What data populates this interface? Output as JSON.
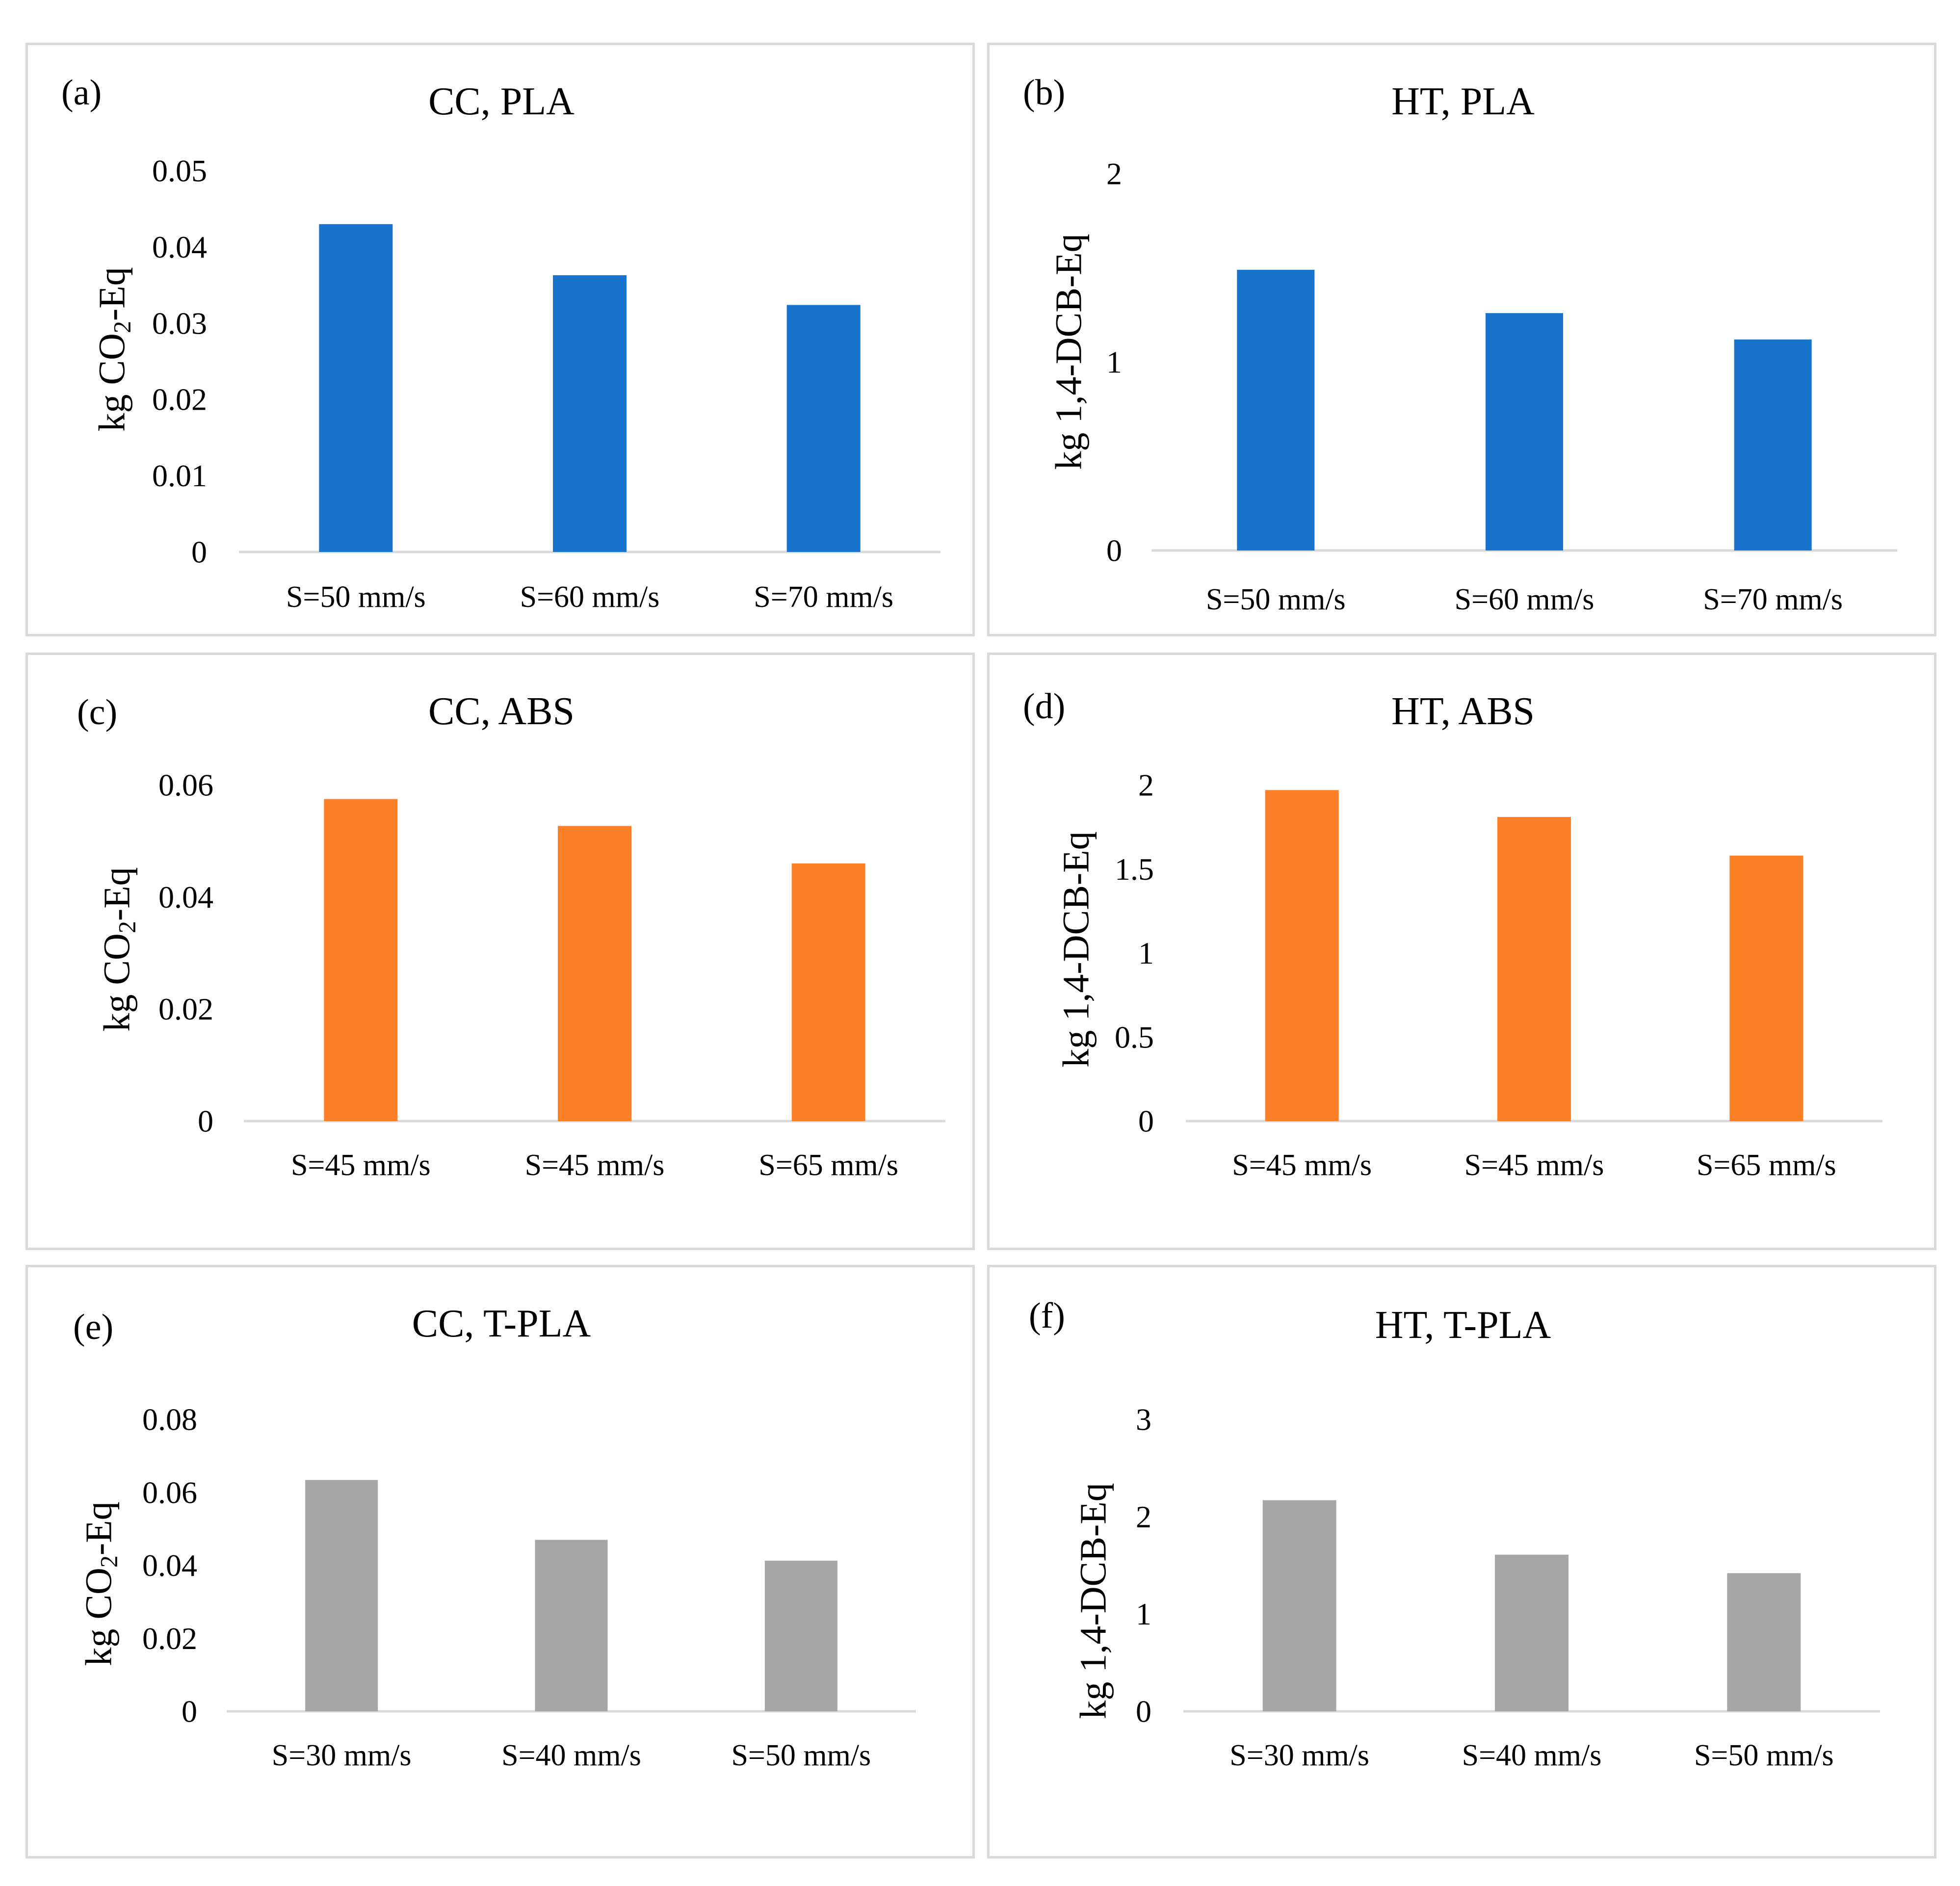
{
  "figure": {
    "background": "#ffffff",
    "border_color": "#d9d9d9",
    "axis_color": "#d9d9d9"
  },
  "panels": [
    {
      "letter": "(a)",
      "ylabel_main": "kg CO",
      "ylabel_sub": "2",
      "ylabel_tail": "-Eq"
    },
    {
      "letter": "(b)",
      "ylabel_main": "kg 1,4-DCB-Eq",
      "ylabel_sub": "",
      "ylabel_tail": ""
    },
    {
      "letter": "(c)",
      "ylabel_main": "kg CO",
      "ylabel_sub": "2",
      "ylabel_tail": "-Eq"
    },
    {
      "letter": "(d)",
      "ylabel_main": "kg 1,4-DCB-Eq",
      "ylabel_sub": "",
      "ylabel_tail": ""
    },
    {
      "letter": "(e)",
      "ylabel_main": "kg CO",
      "ylabel_sub": "2",
      "ylabel_tail": "-Eq"
    },
    {
      "letter": "(f)",
      "ylabel_main": "kg 1,4-DCB-Eq",
      "ylabel_sub": "",
      "ylabel_tail": ""
    }
  ],
  "chart_data": [
    {
      "type": "bar",
      "title": "CC, PLA",
      "xlabel": "",
      "ylabel": "kg CO2-Eq",
      "categories": [
        "S=50 mm/s",
        "S=60 mm/s",
        "S=70 mm/s"
      ],
      "values": [
        0.043,
        0.0363,
        0.0324
      ],
      "ylim": [
        0,
        0.05
      ],
      "yticks": [
        0,
        0.01,
        0.02,
        0.03,
        0.04,
        0.05
      ],
      "ytick_labels": [
        "0",
        "0.01",
        "0.02",
        "0.03",
        "0.04",
        "0.05"
      ],
      "color": "#1874cd",
      "grid": false,
      "legend": "none"
    },
    {
      "type": "bar",
      "title": "HT, PLA",
      "xlabel": "",
      "ylabel": "kg 1,4-DCB-Eq",
      "categories": [
        "S=50 mm/s",
        "S=60 mm/s",
        "S=70 mm/s"
      ],
      "values": [
        1.49,
        1.26,
        1.12
      ],
      "ylim": [
        0,
        2
      ],
      "yticks": [
        0,
        1,
        2
      ],
      "ytick_labels": [
        "0",
        "1",
        "2"
      ],
      "color": "#1874cd",
      "grid": false,
      "legend": "none"
    },
    {
      "type": "bar",
      "title": "CC, ABS",
      "xlabel": "",
      "ylabel": "kg CO2-Eq",
      "categories": [
        "S=45 mm/s",
        "S=45 mm/s",
        "S=65 mm/s"
      ],
      "values": [
        0.0575,
        0.0527,
        0.046
      ],
      "ylim": [
        0,
        0.06
      ],
      "yticks": [
        0,
        0.02,
        0.04,
        0.06
      ],
      "ytick_labels": [
        "0",
        "0.02",
        "0.04",
        "0.06"
      ],
      "color": "#fd7f28",
      "grid": false,
      "legend": "none"
    },
    {
      "type": "bar",
      "title": "HT, ABS",
      "xlabel": "",
      "ylabel": "kg 1,4-DCB-Eq",
      "categories": [
        "S=45 mm/s",
        "S=45 mm/s",
        "S=65 mm/s"
      ],
      "values": [
        1.97,
        1.81,
        1.58
      ],
      "ylim": [
        0,
        2
      ],
      "yticks": [
        0,
        0.5,
        1,
        1.5,
        2
      ],
      "ytick_labels": [
        "0",
        "0.5",
        "1",
        "1.5",
        "2"
      ],
      "color": "#fd7f28",
      "grid": false,
      "legend": "none"
    },
    {
      "type": "bar",
      "title": "CC, T-PLA",
      "xlabel": "",
      "ylabel": "kg CO2-Eq",
      "categories": [
        "S=30 mm/s",
        "S=40 mm/s",
        "S=50 mm/s"
      ],
      "values": [
        0.0634,
        0.047,
        0.0413
      ],
      "ylim": [
        0,
        0.08
      ],
      "yticks": [
        0,
        0.02,
        0.04,
        0.06,
        0.08
      ],
      "ytick_labels": [
        "0",
        "0.02",
        "0.04",
        "0.06",
        "0.08"
      ],
      "color": "#a6a6a6",
      "grid": false,
      "legend": "none"
    },
    {
      "type": "bar",
      "title": "HT, T-PLA",
      "xlabel": "",
      "ylabel": "kg 1,4-DCB-Eq",
      "categories": [
        "S=30 mm/s",
        "S=40 mm/s",
        "S=50 mm/s"
      ],
      "values": [
        2.17,
        1.61,
        1.42
      ],
      "ylim": [
        0,
        3
      ],
      "yticks": [
        0,
        1,
        2,
        3
      ],
      "ytick_labels": [
        "0",
        "1",
        "2",
        "3"
      ],
      "color": "#a6a6a6",
      "grid": false,
      "legend": "none"
    }
  ]
}
